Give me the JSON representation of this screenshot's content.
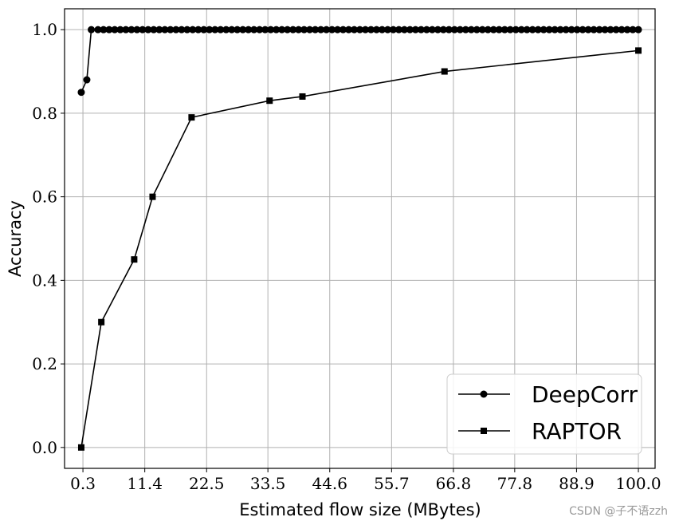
{
  "chart_data": {
    "type": "line",
    "xlabel": "Estimated flow size (MBytes)",
    "ylabel": "Accuracy",
    "xlim": [
      -3.0,
      103.0
    ],
    "ylim": [
      -0.05,
      1.05
    ],
    "x_ticks": [
      0.3,
      11.4,
      22.5,
      33.5,
      44.6,
      55.7,
      66.8,
      77.8,
      88.9,
      100.0
    ],
    "x_tick_labels": [
      "0.3",
      "11.4",
      "22.5",
      "33.5",
      "44.6",
      "55.7",
      "66.8",
      "77.8",
      "88.9",
      "100.0"
    ],
    "y_ticks": [
      0.0,
      0.2,
      0.4,
      0.6,
      0.8,
      1.0
    ],
    "y_tick_labels": [
      "0.0",
      "0.2",
      "0.4",
      "0.6",
      "0.8",
      "1.0"
    ],
    "grid": true,
    "legend_position": "lower-right",
    "series": [
      {
        "name": "DeepCorr",
        "marker": "circle",
        "color": "#000000",
        "points": [
          [
            0.0,
            0.85
          ],
          [
            1.0,
            0.88
          ],
          [
            1.8,
            1.0
          ],
          [
            3.0,
            1.0
          ],
          [
            4.0,
            1.0
          ],
          [
            5.0,
            1.0
          ],
          [
            6.0,
            1.0
          ],
          [
            7.0,
            1.0
          ],
          [
            8.0,
            1.0
          ],
          [
            9.0,
            1.0
          ],
          [
            10.0,
            1.0
          ],
          [
            11.0,
            1.0
          ],
          [
            12.0,
            1.0
          ],
          [
            13.0,
            1.0
          ],
          [
            14.0,
            1.0
          ],
          [
            15.0,
            1.0
          ],
          [
            16.0,
            1.0
          ],
          [
            17.0,
            1.0
          ],
          [
            18.0,
            1.0
          ],
          [
            19.0,
            1.0
          ],
          [
            20.0,
            1.0
          ],
          [
            21.0,
            1.0
          ],
          [
            22.0,
            1.0
          ],
          [
            23.0,
            1.0
          ],
          [
            24.0,
            1.0
          ],
          [
            25.0,
            1.0
          ],
          [
            26.0,
            1.0
          ],
          [
            27.0,
            1.0
          ],
          [
            28.0,
            1.0
          ],
          [
            29.0,
            1.0
          ],
          [
            30.0,
            1.0
          ],
          [
            31.0,
            1.0
          ],
          [
            32.0,
            1.0
          ],
          [
            33.0,
            1.0
          ],
          [
            34.0,
            1.0
          ],
          [
            35.0,
            1.0
          ],
          [
            36.0,
            1.0
          ],
          [
            37.0,
            1.0
          ],
          [
            38.0,
            1.0
          ],
          [
            39.0,
            1.0
          ],
          [
            40.0,
            1.0
          ],
          [
            41.0,
            1.0
          ],
          [
            42.0,
            1.0
          ],
          [
            43.0,
            1.0
          ],
          [
            44.0,
            1.0
          ],
          [
            45.0,
            1.0
          ],
          [
            46.0,
            1.0
          ],
          [
            47.0,
            1.0
          ],
          [
            48.0,
            1.0
          ],
          [
            49.0,
            1.0
          ],
          [
            50.0,
            1.0
          ],
          [
            51.0,
            1.0
          ],
          [
            52.0,
            1.0
          ],
          [
            53.0,
            1.0
          ],
          [
            54.0,
            1.0
          ],
          [
            55.0,
            1.0
          ],
          [
            56.0,
            1.0
          ],
          [
            57.0,
            1.0
          ],
          [
            58.0,
            1.0
          ],
          [
            59.0,
            1.0
          ],
          [
            60.0,
            1.0
          ],
          [
            61.0,
            1.0
          ],
          [
            62.0,
            1.0
          ],
          [
            63.0,
            1.0
          ],
          [
            64.0,
            1.0
          ],
          [
            65.0,
            1.0
          ],
          [
            66.0,
            1.0
          ],
          [
            67.0,
            1.0
          ],
          [
            68.0,
            1.0
          ],
          [
            69.0,
            1.0
          ],
          [
            70.0,
            1.0
          ],
          [
            71.0,
            1.0
          ],
          [
            72.0,
            1.0
          ],
          [
            73.0,
            1.0
          ],
          [
            74.0,
            1.0
          ],
          [
            75.0,
            1.0
          ],
          [
            76.0,
            1.0
          ],
          [
            77.0,
            1.0
          ],
          [
            78.0,
            1.0
          ],
          [
            79.0,
            1.0
          ],
          [
            80.0,
            1.0
          ],
          [
            81.0,
            1.0
          ],
          [
            82.0,
            1.0
          ],
          [
            83.0,
            1.0
          ],
          [
            84.0,
            1.0
          ],
          [
            85.0,
            1.0
          ],
          [
            86.0,
            1.0
          ],
          [
            87.0,
            1.0
          ],
          [
            88.0,
            1.0
          ],
          [
            89.0,
            1.0
          ],
          [
            90.0,
            1.0
          ],
          [
            91.0,
            1.0
          ],
          [
            92.0,
            1.0
          ],
          [
            93.0,
            1.0
          ],
          [
            94.0,
            1.0
          ],
          [
            95.0,
            1.0
          ],
          [
            96.0,
            1.0
          ],
          [
            97.0,
            1.0
          ],
          [
            98.0,
            1.0
          ],
          [
            99.0,
            1.0
          ],
          [
            100.0,
            1.0
          ]
        ]
      },
      {
        "name": "RAPTOR",
        "marker": "square",
        "color": "#000000",
        "points": [
          [
            0.0,
            0.0
          ],
          [
            3.6,
            0.3
          ],
          [
            9.5,
            0.45
          ],
          [
            12.8,
            0.6
          ],
          [
            19.8,
            0.79
          ],
          [
            33.8,
            0.83
          ],
          [
            39.7,
            0.84
          ],
          [
            65.2,
            0.9
          ],
          [
            100.0,
            0.95
          ]
        ]
      }
    ]
  },
  "watermark": "CSDN @子不语zzh"
}
